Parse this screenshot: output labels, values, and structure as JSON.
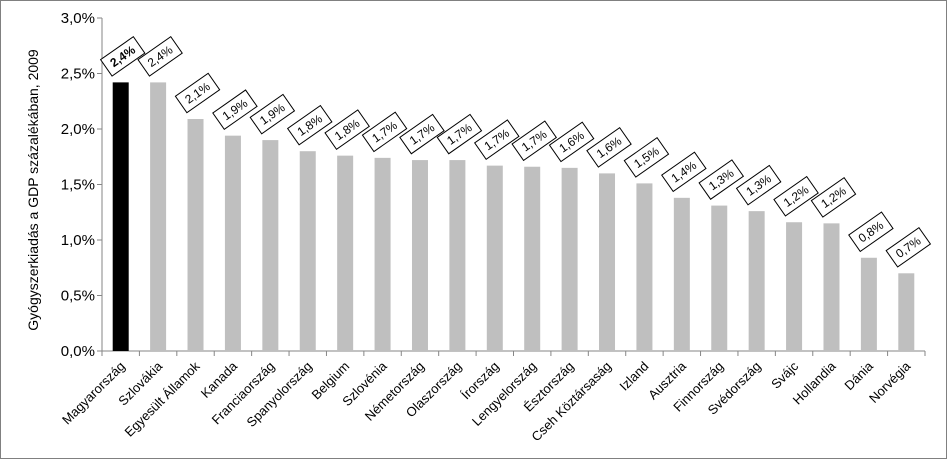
{
  "chart_data": {
    "type": "bar",
    "ylabel": "Gyógyszerkiadás a GDP százalékában, 2009",
    "xlabel": "",
    "ylim": [
      0,
      3.0
    ],
    "yticks": [
      0.0,
      0.5,
      1.0,
      1.5,
      2.0,
      2.5,
      3.0
    ],
    "ytick_labels": [
      "0,0%",
      "0,5%",
      "1,0%",
      "1,5%",
      "2,0%",
      "2,5%",
      "3,0%"
    ],
    "grid": false,
    "categories": [
      "Magyarország",
      "Szlovákia",
      "Egyesült Államok",
      "Kanada",
      "Franciaország",
      "Spanyolország",
      "Belgium",
      "Szlovénia",
      "Németország",
      "Olaszország",
      "Írország",
      "Lengyelország",
      "Észtország",
      "Cseh Köztársaság",
      "Izland",
      "Ausztria",
      "Finnország",
      "Svédország",
      "Svájc",
      "Hollandia",
      "Dánia",
      "Norvégia"
    ],
    "values": [
      2.42,
      2.42,
      2.09,
      1.94,
      1.9,
      1.8,
      1.76,
      1.74,
      1.72,
      1.72,
      1.67,
      1.66,
      1.65,
      1.6,
      1.51,
      1.38,
      1.31,
      1.26,
      1.16,
      1.15,
      0.84,
      0.7
    ],
    "data_labels": [
      "2,4%",
      "2,4%",
      "2,1%",
      "1,9%",
      "1,9%",
      "1,8%",
      "1,8%",
      "1,7%",
      "1,7%",
      "1,7%",
      "1,7%",
      "1,7%",
      "1,6%",
      "1,6%",
      "1,5%",
      "1,4%",
      "1,3%",
      "1,3%",
      "1,2%",
      "1,2%",
      "0,8%",
      "0,7%"
    ],
    "highlight_index": 0,
    "colors": {
      "highlight": "#000000",
      "bar": "#bfbfbf",
      "axis": "#868686"
    }
  }
}
